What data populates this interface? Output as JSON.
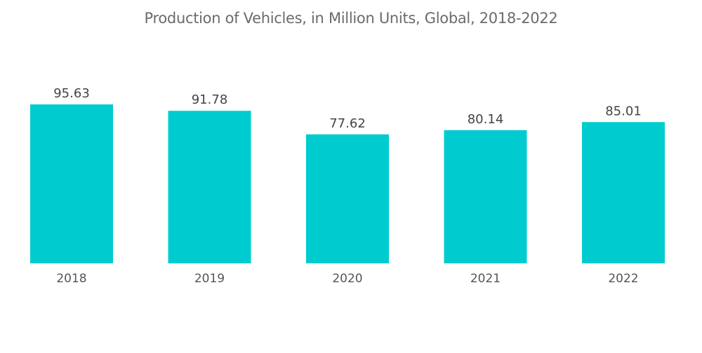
{
  "chart_data": {
    "type": "bar",
    "title": "Production of Vehicles, in Million Units, Global, 2018-2022",
    "categories": [
      "2018",
      "2019",
      "2020",
      "2021",
      "2022"
    ],
    "values": [
      95.63,
      91.78,
      77.62,
      80.14,
      85.01
    ],
    "value_labels": [
      "95.63",
      "91.78",
      "77.62",
      "80.14",
      "85.01"
    ],
    "xlabel": "",
    "ylabel": "",
    "ylim": [
      0,
      100
    ],
    "grid": false,
    "legend": "none",
    "colors": {
      "bar": "#00CCD0"
    }
  }
}
